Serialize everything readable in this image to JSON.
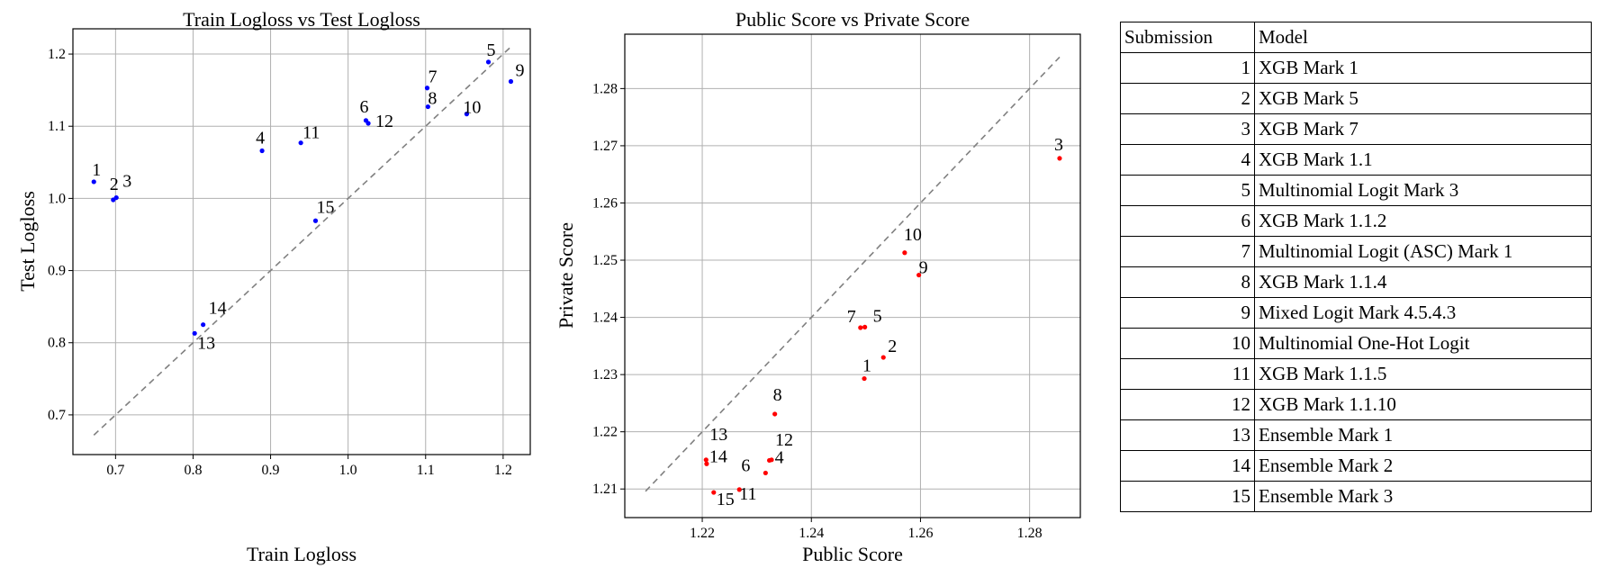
{
  "chart_data": [
    {
      "type": "scatter",
      "title": "Train Logloss vs Test Logloss",
      "xlabel": "Train Logloss",
      "ylabel": "Test Logloss",
      "xlim": [
        0.645,
        1.235
      ],
      "ylim": [
        0.645,
        1.235
      ],
      "xticks": [
        0.7,
        0.8,
        0.9,
        1.0,
        1.1,
        1.2
      ],
      "yticks": [
        0.7,
        0.8,
        0.9,
        1.0,
        1.1,
        1.2
      ],
      "tick_labels": [
        "0.7",
        "0.8",
        "0.9",
        "1.0",
        "1.1",
        "1.2"
      ],
      "grid": true,
      "reference_line": [
        [
          0.672,
          0.672
        ],
        [
          1.21,
          1.21
        ]
      ],
      "point_color": "#0000ff",
      "points": [
        {
          "label": "1",
          "x": 0.672,
          "y": 1.023
        },
        {
          "label": "2",
          "x": 0.697,
          "y": 0.998
        },
        {
          "label": "3",
          "x": 0.701,
          "y": 1.001
        },
        {
          "label": "4",
          "x": 0.889,
          "y": 1.066
        },
        {
          "label": "5",
          "x": 1.181,
          "y": 1.189
        },
        {
          "label": "6",
          "x": 1.023,
          "y": 1.108
        },
        {
          "label": "7",
          "x": 1.102,
          "y": 1.153
        },
        {
          "label": "8",
          "x": 1.103,
          "y": 1.127
        },
        {
          "label": "9",
          "x": 1.21,
          "y": 1.162
        },
        {
          "label": "10",
          "x": 1.153,
          "y": 1.117
        },
        {
          "label": "11",
          "x": 0.939,
          "y": 1.077
        },
        {
          "label": "12",
          "x": 1.026,
          "y": 1.104
        },
        {
          "label": "13",
          "x": 0.802,
          "y": 0.813
        },
        {
          "label": "14",
          "x": 0.813,
          "y": 0.825
        },
        {
          "label": "15",
          "x": 0.958,
          "y": 0.969
        }
      ]
    },
    {
      "type": "scatter",
      "title": "Public Score vs Private Score",
      "xlabel": "Public Score",
      "ylabel": "Private Score",
      "xlim": [
        1.2058,
        1.2893
      ],
      "ylim": [
        1.205,
        1.2895
      ],
      "xticks": [
        1.22,
        1.24,
        1.26,
        1.28
      ],
      "yticks": [
        1.21,
        1.22,
        1.23,
        1.24,
        1.25,
        1.26,
        1.27,
        1.28
      ],
      "xtick_labels": [
        "1.22",
        "1.24",
        "1.26",
        "1.28"
      ],
      "ytick_labels": [
        "1.21",
        "1.22",
        "1.23",
        "1.24",
        "1.25",
        "1.26",
        "1.27",
        "1.28"
      ],
      "grid": true,
      "reference_line": [
        [
          1.2096,
          1.2096
        ],
        [
          1.2855,
          1.2855
        ]
      ],
      "point_color": "#ff0000",
      "points": [
        {
          "label": "1",
          "x": 1.2497,
          "y": 1.2293
        },
        {
          "label": "2",
          "x": 1.2532,
          "y": 1.233
        },
        {
          "label": "3",
          "x": 1.2855,
          "y": 1.2678
        },
        {
          "label": "4",
          "x": 1.2323,
          "y": 1.215
        },
        {
          "label": "5",
          "x": 1.2498,
          "y": 1.2383
        },
        {
          "label": "6",
          "x": 1.2316,
          "y": 1.2128
        },
        {
          "label": "7",
          "x": 1.249,
          "y": 1.2382
        },
        {
          "label": "8",
          "x": 1.2333,
          "y": 1.2231
        },
        {
          "label": "9",
          "x": 1.2597,
          "y": 1.2474
        },
        {
          "label": "10",
          "x": 1.2571,
          "y": 1.2513
        },
        {
          "label": "11",
          "x": 1.2268,
          "y": 1.2099
        },
        {
          "label": "12",
          "x": 1.2327,
          "y": 1.2151
        },
        {
          "label": "13",
          "x": 1.2207,
          "y": 1.2151
        },
        {
          "label": "14",
          "x": 1.2208,
          "y": 1.2144
        },
        {
          "label": "15",
          "x": 1.2221,
          "y": 1.2094
        }
      ]
    },
    {
      "type": "table",
      "columns": [
        "Submission",
        "Model"
      ],
      "rows": [
        [
          "1",
          "XGB Mark 1"
        ],
        [
          "2",
          "XGB Mark 5"
        ],
        [
          "3",
          "XGB Mark 7"
        ],
        [
          "4",
          "XGB Mark 1.1"
        ],
        [
          "5",
          "Multinomial Logit Mark 3"
        ],
        [
          "6",
          "XGB Mark 1.1.2"
        ],
        [
          "7",
          "Multinomial Logit (ASC) Mark 1"
        ],
        [
          "8",
          "XGB Mark 1.1.4"
        ],
        [
          "9",
          "Mixed Logit Mark 4.5.4.3"
        ],
        [
          "10",
          "Multinomial One-Hot Logit"
        ],
        [
          "11",
          "XGB Mark 1.1.5"
        ],
        [
          "12",
          "XGB Mark 1.1.10"
        ],
        [
          "13",
          "Ensemble Mark 1"
        ],
        [
          "14",
          "Ensemble Mark 2"
        ],
        [
          "15",
          "Ensemble Mark 3"
        ]
      ]
    }
  ]
}
